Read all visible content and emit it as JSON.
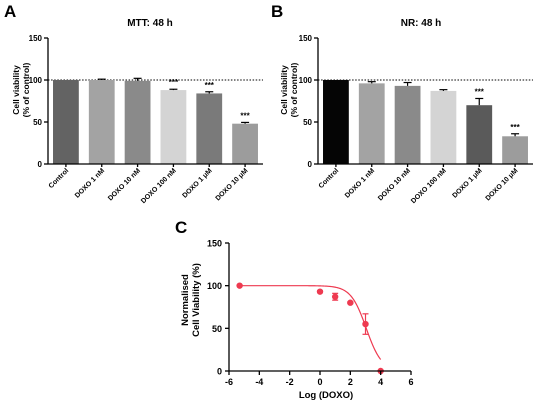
{
  "chart_data": [
    {
      "panel": "A",
      "type": "bar",
      "title": "MTT: 48 h",
      "ylabel": [
        "Cell viability",
        "(% of control)"
      ],
      "ylim": [
        0,
        150
      ],
      "yticks": [
        0,
        50,
        100,
        150
      ],
      "reference_line": 100,
      "categories": [
        "Control",
        "DOXO 1 nM",
        "DOXO 10 nM",
        "DOXO 100 nM",
        "DOXO 1 μM",
        "DOXO 10 μM"
      ],
      "values": [
        100,
        100,
        99,
        88,
        84,
        48
      ],
      "errors": [
        0,
        1,
        3,
        1,
        2,
        1.5
      ],
      "significance": [
        "",
        "",
        "",
        "***",
        "***",
        "***"
      ],
      "colors": [
        "#636363",
        "#a3a3a3",
        "#8a8a8a",
        "#d4d4d4",
        "#7a7a7a",
        "#9c9c9c"
      ]
    },
    {
      "panel": "B",
      "type": "bar",
      "title": "NR: 48 h",
      "ylabel": [
        "Cell viability",
        "(% of control)"
      ],
      "ylim": [
        0,
        150
      ],
      "yticks": [
        0,
        50,
        100,
        150
      ],
      "reference_line": 100,
      "categories": [
        "Control",
        "DOXO 1 nM",
        "DOXO 10 nM",
        "DOXO 100 nM",
        "DOXO 1 μM",
        "DOXO 10 μM"
      ],
      "values": [
        100,
        96,
        93,
        87,
        70,
        33
      ],
      "errors": [
        0,
        2,
        4,
        1.5,
        8,
        3
      ],
      "significance": [
        "",
        "",
        "",
        "",
        "***",
        "***"
      ],
      "colors": [
        "#050505",
        "#a3a3a3",
        "#8a8a8a",
        "#d4d4d4",
        "#5a5a5a",
        "#9c9c9c"
      ]
    },
    {
      "panel": "C",
      "type": "scatter",
      "xlabel": "Log (DOXO)",
      "ylabel": [
        "Normalised",
        "Cell Viability (%)"
      ],
      "xlim": [
        -6,
        6
      ],
      "ylim": [
        0,
        150
      ],
      "xticks": [
        -6,
        -4,
        -2,
        0,
        2,
        4,
        6
      ],
      "yticks": [
        0,
        50,
        100,
        150
      ],
      "points": [
        {
          "x": -5.3,
          "y": 100,
          "err": 0
        },
        {
          "x": 0,
          "y": 93,
          "err": 1
        },
        {
          "x": 1,
          "y": 87,
          "err": 4
        },
        {
          "x": 2,
          "y": 80,
          "err": 1
        },
        {
          "x": 3,
          "y": 55,
          "err": 12
        },
        {
          "x": 4,
          "y": 0,
          "err": 0
        }
      ],
      "fit": {
        "top": 100,
        "bottom": 0,
        "log_ic50": 3.05,
        "hill": 0.85
      },
      "color": "#ee3a50"
    }
  ]
}
